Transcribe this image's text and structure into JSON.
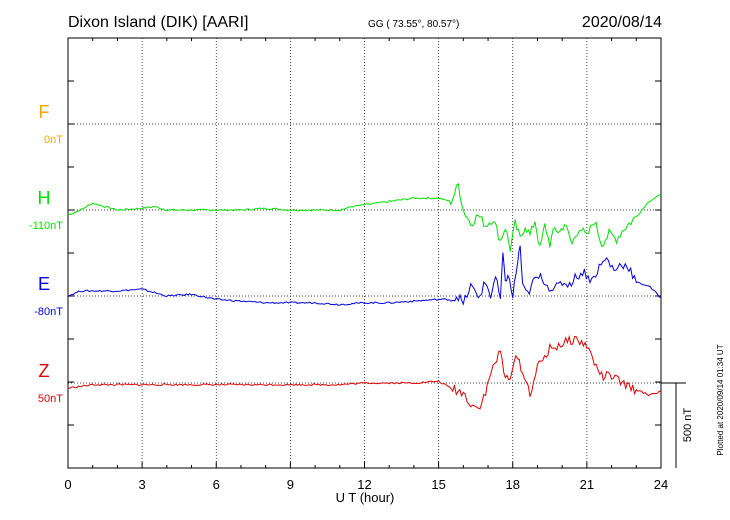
{
  "header": {
    "station": "Dixon Island (DIK)  [AARI]",
    "coords": "GG ( 73.55°,  80.57°)",
    "date": "2020/08/14"
  },
  "side_note": "Plotted at 2020/09/14 01:34 UT",
  "scale_label": "500 nT",
  "colors": {
    "F": "#f5a800",
    "H": "#00e000",
    "E": "#0000e0",
    "Z": "#e00000"
  },
  "chart_data": {
    "type": "line",
    "title": "Dixon Island (DIK)  [AARI]",
    "xlabel": "U T (hour)",
    "ylabel": "",
    "xlim": [
      0,
      24
    ],
    "x_ticks": [
      0,
      3,
      6,
      9,
      12,
      15,
      18,
      21,
      24
    ],
    "x_tick_labels": [
      "0",
      "3",
      "6",
      "9",
      "12",
      "15",
      "18",
      "21",
      "24"
    ],
    "grid": true,
    "scale_bar_nT": 500,
    "components": [
      {
        "letter": "F",
        "base": "0nT",
        "color": "#f5a800"
      },
      {
        "letter": "H",
        "base": "-110nT",
        "color": "#00e000"
      },
      {
        "letter": "E",
        "base": "-80nT",
        "color": "#0000e0"
      },
      {
        "letter": "Z",
        "base": "50nT",
        "color": "#e00000"
      }
    ],
    "series": [
      {
        "name": "H",
        "color": "#00e000",
        "x": [
          0,
          0.5,
          1,
          1.5,
          2,
          3,
          3.5,
          4,
          5,
          6,
          7,
          8,
          9,
          10,
          11,
          11.5,
          12,
          13,
          14,
          15,
          15.5,
          15.8,
          16,
          16.3,
          16.6,
          16.9,
          17.2,
          17.5,
          17.7,
          17.9,
          18.1,
          18.3,
          18.5,
          18.7,
          18.9,
          19.1,
          19.3,
          19.5,
          19.7,
          19.9,
          20.1,
          20.4,
          20.7,
          21,
          21.3,
          21.6,
          21.9,
          22.2,
          22.5,
          23,
          23.5,
          24
        ],
        "y": [
          -30,
          0,
          40,
          20,
          0,
          10,
          20,
          0,
          0,
          0,
          0,
          10,
          0,
          0,
          0,
          20,
          30,
          50,
          70,
          70,
          50,
          150,
          0,
          -80,
          -30,
          -90,
          -50,
          -180,
          -100,
          -230,
          -80,
          -170,
          -90,
          -150,
          -60,
          -230,
          -90,
          -200,
          -110,
          -130,
          -80,
          -200,
          -100,
          -160,
          -60,
          -200,
          -140,
          -170,
          -110,
          -40,
          50,
          90
        ]
      },
      {
        "name": "E",
        "color": "#0000e0",
        "x": [
          0,
          0.5,
          1,
          2,
          3,
          4,
          5,
          6,
          7,
          8,
          9,
          10,
          11,
          12,
          13,
          14,
          15,
          15.5,
          15.8,
          16,
          16.3,
          16.6,
          16.9,
          17.1,
          17.3,
          17.5,
          17.6,
          17.7,
          17.8,
          18,
          18.2,
          18.3,
          18.4,
          18.6,
          18.9,
          19.2,
          19.4,
          19.7,
          20,
          20.3,
          20.6,
          20.9,
          21.2,
          21.5,
          21.8,
          22.1,
          22.4,
          22.7,
          23,
          23.5,
          24
        ],
        "y": [
          0,
          30,
          30,
          30,
          40,
          0,
          10,
          -20,
          -30,
          -40,
          -40,
          -40,
          -50,
          -40,
          -40,
          -30,
          -20,
          -20,
          0,
          -50,
          60,
          -10,
          80,
          0,
          110,
          -20,
          230,
          100,
          120,
          0,
          200,
          300,
          50,
          10,
          100,
          110,
          60,
          40,
          80,
          70,
          120,
          140,
          90,
          170,
          220,
          150,
          190,
          170,
          80,
          60,
          -10
        ]
      },
      {
        "name": "Z",
        "color": "#e00000",
        "x": [
          0,
          0.5,
          1,
          2,
          3,
          4,
          5,
          6,
          7,
          8,
          9,
          10,
          11,
          12,
          13,
          14,
          15,
          15.5,
          16,
          16.3,
          16.6,
          16.9,
          17.2,
          17.5,
          17.7,
          17.9,
          18.2,
          18.4,
          18.7,
          19,
          19.5,
          20,
          20.5,
          21,
          21.3,
          21.6,
          22,
          22.5,
          23,
          23.5,
          24
        ],
        "y": [
          -30,
          -20,
          -10,
          -10,
          -10,
          -10,
          -10,
          -10,
          -10,
          -10,
          -10,
          -10,
          -10,
          0,
          0,
          0,
          10,
          -30,
          -60,
          -120,
          -150,
          -60,
          100,
          180,
          20,
          50,
          160,
          60,
          -60,
          90,
          200,
          230,
          260,
          220,
          120,
          40,
          40,
          -10,
          -40,
          -70,
          -50
        ]
      }
    ]
  }
}
